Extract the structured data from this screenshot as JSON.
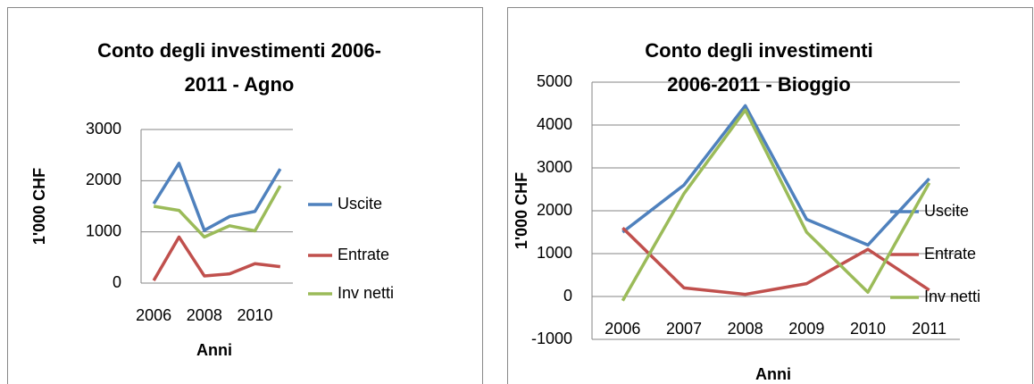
{
  "chart_data": [
    {
      "type": "line",
      "title": [
        "Conto degli investimenti 2006-",
        "2011 - Agno"
      ],
      "x_label": "Anni",
      "y_label": "1'000 CHF",
      "categories": [
        "2006",
        null,
        "2008",
        null,
        "2010",
        null
      ],
      "ylim": [
        0,
        3000
      ],
      "yticks": [
        0,
        1000,
        2000,
        3000
      ],
      "grid": true,
      "legend": "right",
      "series": [
        {
          "name": "Uscite",
          "color": "#4f81bd",
          "values": [
            1550,
            2340,
            1030,
            1300,
            1400,
            2230
          ]
        },
        {
          "name": "Entrate",
          "color": "#c0504d",
          "values": [
            50,
            900,
            140,
            180,
            380,
            320
          ]
        },
        {
          "name": "Inv netti",
          "color": "#9bbb59",
          "values": [
            1500,
            1420,
            900,
            1120,
            1020,
            1900
          ]
        }
      ]
    },
    {
      "type": "line",
      "title": [
        "Conto degli investimenti",
        "2006-2011 - Bioggio"
      ],
      "x_label": "Anni",
      "y_label": "1'000 CHF",
      "categories": [
        "2006",
        "2007",
        "2008",
        "2009",
        "2010",
        "2011"
      ],
      "ylim": [
        -1000,
        5000
      ],
      "yticks": [
        -1000,
        0,
        1000,
        2000,
        3000,
        4000,
        5000
      ],
      "grid": true,
      "legend": "right",
      "series": [
        {
          "name": "Uscite",
          "color": "#4f81bd",
          "values": [
            1500,
            2600,
            4450,
            1800,
            1200,
            2750
          ]
        },
        {
          "name": "Entrate",
          "color": "#c0504d",
          "values": [
            1600,
            200,
            50,
            300,
            1100,
            150
          ]
        },
        {
          "name": "Inv netti",
          "color": "#9bbb59",
          "values": [
            -100,
            2400,
            4350,
            1500,
            100,
            2650
          ]
        }
      ]
    }
  ]
}
